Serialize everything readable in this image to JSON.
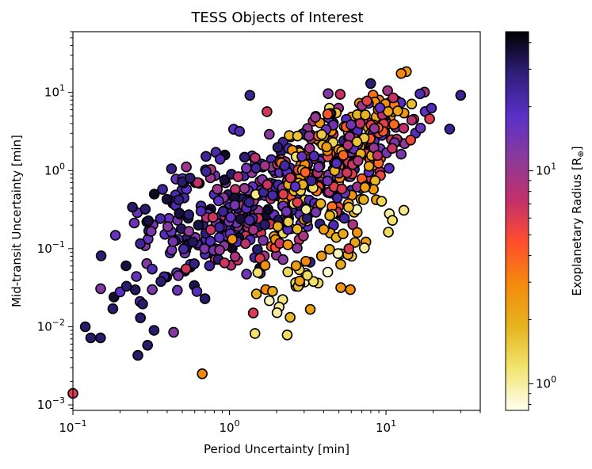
{
  "chart_data": {
    "type": "scatter",
    "title": "TESS Objects of Interest",
    "xlabel": "Period Uncertainty [min]",
    "ylabel": "Mid-transit Uncertainty [min]",
    "xscale": "log",
    "yscale": "log",
    "xlim": [
      0.1,
      40
    ],
    "ylim": [
      0.00085,
      60
    ],
    "grid": false,
    "x_ticks": [
      {
        "value": 0.1,
        "base": "10",
        "exp": "−1"
      },
      {
        "value": 1,
        "base": "10",
        "exp": "0"
      },
      {
        "value": 10,
        "base": "10",
        "exp": "1"
      }
    ],
    "y_ticks": [
      {
        "value": 0.001,
        "base": "10",
        "exp": "−3"
      },
      {
        "value": 0.01,
        "base": "10",
        "exp": "−2"
      },
      {
        "value": 0.1,
        "base": "10",
        "exp": "−1"
      },
      {
        "value": 1,
        "base": "10",
        "exp": "0"
      },
      {
        "value": 10,
        "base": "10",
        "exp": "1"
      }
    ],
    "colorbar": {
      "label": "Exoplanetary Radius [R",
      "label_sub": "⊕",
      "label_end": "]",
      "scale": "log",
      "range": [
        0.75,
        45
      ],
      "ticks": [
        {
          "value": 1,
          "base": "10",
          "exp": "0"
        },
        {
          "value": 10,
          "base": "10",
          "exp": "1"
        }
      ],
      "colormap": "CMRmap_r",
      "stops": [
        "#fffff0",
        "#f2e470",
        "#e6b31e",
        "#f58a0c",
        "#ff4d2e",
        "#c2306a",
        "#8a3a9c",
        "#5b30c8",
        "#2f1e7a",
        "#000000"
      ]
    },
    "clusters": [
      {
        "x_center": 0.55,
        "y_center": 0.25,
        "x_spread": 0.22,
        "y_spread": 0.45,
        "count": 110,
        "radius_range": [
          12,
          40
        ]
      },
      {
        "x_center": 1.5,
        "y_center": 0.4,
        "x_spread": 0.22,
        "y_spread": 0.4,
        "count": 200,
        "radius_range": [
          6,
          40
        ]
      },
      {
        "x_center": 4.0,
        "y_center": 1.0,
        "x_spread": 0.2,
        "y_spread": 0.38,
        "count": 260,
        "radius_range": [
          1,
          30
        ]
      },
      {
        "x_center": 8.0,
        "y_center": 2.5,
        "x_spread": 0.15,
        "y_spread": 0.3,
        "count": 130,
        "radius_range": [
          1.5,
          20
        ]
      },
      {
        "x_center": 3.5,
        "y_center": 0.06,
        "x_spread": 0.25,
        "y_spread": 0.3,
        "count": 50,
        "radius_range": [
          0.8,
          3
        ]
      }
    ],
    "points": [
      {
        "x": 0.1,
        "y": 0.0014,
        "r": 6
      },
      {
        "x": 0.12,
        "y": 0.01,
        "r": 30
      },
      {
        "x": 0.13,
        "y": 0.0072,
        "r": 30
      },
      {
        "x": 0.15,
        "y": 0.0072,
        "r": 30
      },
      {
        "x": 0.18,
        "y": 0.017,
        "r": 30
      },
      {
        "x": 0.2,
        "y": 0.028,
        "r": 18
      },
      {
        "x": 0.22,
        "y": 0.033,
        "r": 30
      },
      {
        "x": 0.24,
        "y": 0.34,
        "r": 30
      },
      {
        "x": 0.26,
        "y": 0.0043,
        "r": 30
      },
      {
        "x": 0.3,
        "y": 0.0058,
        "r": 30
      },
      {
        "x": 0.29,
        "y": 0.32,
        "r": 30
      },
      {
        "x": 0.27,
        "y": 0.013,
        "r": 30
      },
      {
        "x": 0.33,
        "y": 0.009,
        "r": 30
      },
      {
        "x": 0.44,
        "y": 0.0085,
        "r": 12
      },
      {
        "x": 0.5,
        "y": 0.72,
        "r": 30
      },
      {
        "x": 0.56,
        "y": 0.8,
        "r": 30
      },
      {
        "x": 1.35,
        "y": 9.2,
        "r": 25
      },
      {
        "x": 0.67,
        "y": 0.0025,
        "r": 3
      },
      {
        "x": 1.42,
        "y": 0.015,
        "r": 6
      },
      {
        "x": 5.8,
        "y": 0.1,
        "r": 6
      },
      {
        "x": 10.5,
        "y": 0.28,
        "r": 1
      },
      {
        "x": 13,
        "y": 0.31,
        "r": 1.1
      },
      {
        "x": 11,
        "y": 0.23,
        "r": 1.2
      },
      {
        "x": 30,
        "y": 9.2,
        "r": 25
      },
      {
        "x": 25.5,
        "y": 3.4,
        "r": 25
      },
      {
        "x": 19.5,
        "y": 6.3,
        "r": 20
      },
      {
        "x": 13.5,
        "y": 18.5,
        "r": 2.5
      },
      {
        "x": 12.5,
        "y": 17.5,
        "r": 3
      },
      {
        "x": 19,
        "y": 4.6,
        "r": 6
      },
      {
        "x": 16.5,
        "y": 9.6,
        "r": 20
      }
    ]
  }
}
